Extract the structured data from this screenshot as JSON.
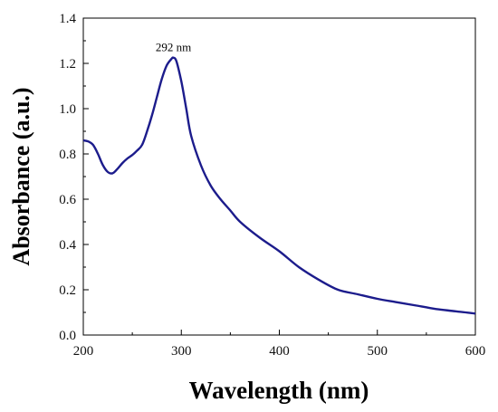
{
  "chart_data": {
    "type": "line",
    "title": "",
    "xlabel": "Wavelength (nm)",
    "ylabel": "Absorbance (a.u.)",
    "xlim": [
      200,
      600
    ],
    "ylim": [
      0.0,
      1.4
    ],
    "x_ticks": [
      200,
      300,
      400,
      500,
      600
    ],
    "x_tick_labels": [
      "200",
      "300",
      "400",
      "500",
      "600"
    ],
    "y_ticks": [
      0.0,
      0.2,
      0.4,
      0.6,
      0.8,
      1.0,
      1.2,
      1.4
    ],
    "y_tick_labels": [
      "0.0",
      "0.2",
      "0.4",
      "0.6",
      "0.8",
      "1.0",
      "1.2",
      "1.4"
    ],
    "grid": false,
    "legend": "none",
    "line_color": "#1c1c8c",
    "annotations": [
      {
        "text": "292 nm",
        "x": 292,
        "y": 1.27
      }
    ],
    "series": [
      {
        "x": [
          200,
          205,
          210,
          215,
          220,
          225,
          230,
          235,
          240,
          245,
          250,
          255,
          260,
          265,
          270,
          275,
          280,
          285,
          290,
          292,
          295,
          300,
          305,
          310,
          320,
          330,
          340,
          350,
          360,
          380,
          400,
          420,
          440,
          460,
          480,
          500,
          520,
          540,
          560,
          580,
          600
        ],
        "y": [
          0.86,
          0.855,
          0.84,
          0.8,
          0.75,
          0.72,
          0.715,
          0.735,
          0.76,
          0.78,
          0.795,
          0.815,
          0.84,
          0.9,
          0.97,
          1.05,
          1.13,
          1.19,
          1.22,
          1.225,
          1.21,
          1.12,
          1.0,
          0.88,
          0.75,
          0.66,
          0.6,
          0.55,
          0.5,
          0.43,
          0.37,
          0.3,
          0.245,
          0.2,
          0.18,
          0.16,
          0.145,
          0.13,
          0.115,
          0.105,
          0.095
        ]
      }
    ]
  }
}
